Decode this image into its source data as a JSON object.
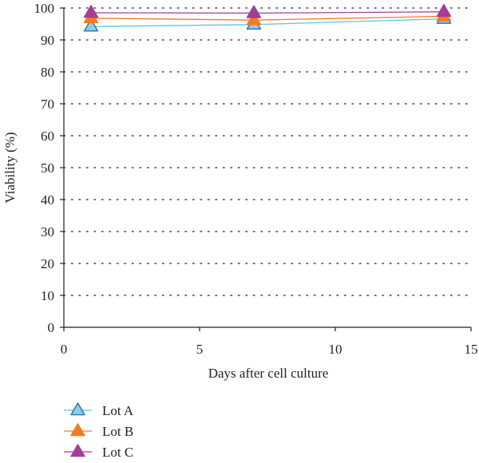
{
  "chart_data": {
    "type": "line",
    "xlabel": "Days after cell culture",
    "ylabel": "Viability (%)",
    "xlim": [
      0,
      15
    ],
    "ylim": [
      0,
      100
    ],
    "xticks": [
      0,
      5,
      10,
      15
    ],
    "yticks": [
      0,
      10,
      20,
      30,
      40,
      50,
      60,
      70,
      80,
      90,
      100
    ],
    "grid": "horizontal dotted",
    "legend_position": "bottom-left",
    "series": [
      {
        "name": "Lot A",
        "color": "#5bc5e8",
        "marker_fill": "#8fcbe4",
        "marker_stroke": "#2a72a8",
        "marker": "triangle",
        "x": [
          1,
          7,
          14
        ],
        "y": [
          94.2,
          94.8,
          96.6
        ]
      },
      {
        "name": "Lot B",
        "color": "#f47a20",
        "marker_fill": "#f47a20",
        "marker_stroke": "#f47a20",
        "marker": "triangle",
        "x": [
          1,
          7,
          14
        ],
        "y": [
          96.8,
          96.2,
          97.4
        ]
      },
      {
        "name": "Lot C",
        "color": "#a53d96",
        "marker_fill": "#a53d96",
        "marker_stroke": "#a53d96",
        "marker": "triangle",
        "x": [
          1,
          7,
          14
        ],
        "y": [
          98.5,
          98.4,
          98.8
        ]
      }
    ]
  }
}
